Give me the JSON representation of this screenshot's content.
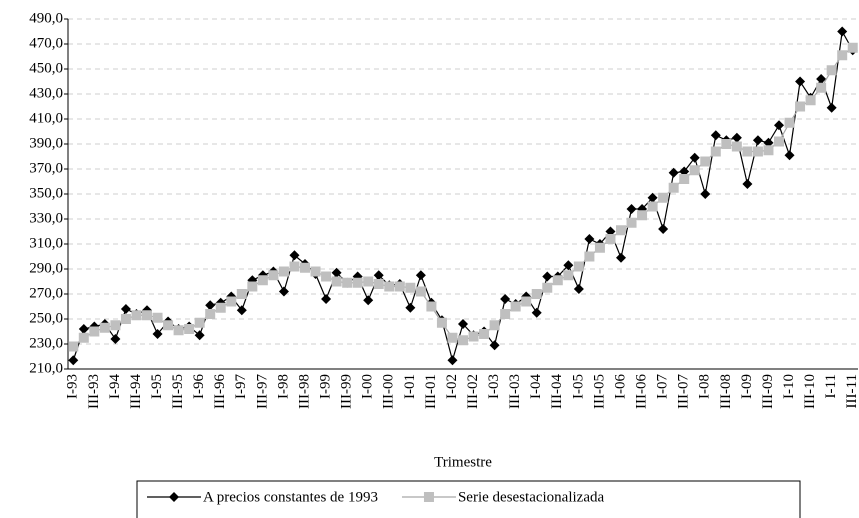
{
  "chart_data": {
    "type": "line",
    "x_label": "Trimestre",
    "categories": [
      "I-93",
      null,
      "III-93",
      null,
      "I-94",
      null,
      "III-94",
      null,
      "I-95",
      null,
      "III-95",
      null,
      "I-96",
      null,
      "III-96",
      null,
      "I-97",
      null,
      "III-97",
      null,
      "I-98",
      null,
      "III-98",
      null,
      "I-99",
      null,
      "III-99",
      null,
      "I-00",
      null,
      "III-00",
      null,
      "I-01",
      null,
      "III-01",
      null,
      "I-02",
      null,
      "III-02",
      null,
      "I-03",
      null,
      "III-03",
      null,
      "I-04",
      null,
      "III-04",
      null,
      "I-05",
      null,
      "III-05",
      null,
      "I-06",
      null,
      "III-06",
      null,
      "I-07",
      null,
      "III-07",
      null,
      "I-08",
      null,
      "III-08",
      null,
      "I-09",
      null,
      "III-09",
      null,
      "I-10",
      null,
      "III-10",
      null,
      "I-11",
      null,
      "III-11"
    ],
    "series": [
      {
        "name": "A precios constantes de 1993",
        "color": "#000000",
        "marker": "diamond",
        "values": [
          217,
          242,
          244,
          246,
          234,
          258,
          254,
          257,
          238,
          248,
          242,
          244,
          237,
          261,
          263,
          268,
          257,
          281,
          285,
          288,
          272,
          301,
          294,
          286,
          266,
          287,
          279,
          284,
          265,
          285,
          277,
          278,
          259,
          285,
          263,
          249,
          217,
          246,
          237,
          240,
          229,
          266,
          262,
          268,
          255,
          284,
          284,
          293,
          274,
          314,
          310,
          320,
          299,
          338,
          338,
          347,
          322,
          367,
          368,
          379,
          350,
          397,
          393,
          395,
          358,
          393,
          391,
          405,
          381,
          440,
          427,
          442,
          419,
          480,
          465
        ]
      },
      {
        "name": "Serie desestacionalizada",
        "color": "#bfbfbf",
        "marker": "square",
        "values": [
          228,
          235,
          240,
          243,
          245,
          250,
          253,
          253,
          251,
          245,
          241,
          242,
          247,
          254,
          259,
          264,
          270,
          276,
          281,
          285,
          288,
          292,
          291,
          288,
          284,
          280,
          279,
          279,
          280,
          278,
          276,
          276,
          275,
          272,
          260,
          247,
          235,
          233,
          236,
          238,
          245,
          254,
          260,
          264,
          270,
          275,
          281,
          285,
          292,
          300,
          307,
          314,
          321,
          327,
          333,
          340,
          347,
          355,
          362,
          369,
          376,
          384,
          390,
          388,
          384,
          384,
          385,
          392,
          407,
          420,
          425,
          435,
          449,
          461,
          467
        ]
      }
    ],
    "ylim": [
      210,
      490
    ],
    "yticks": [
      {
        "value": 210,
        "label": "210,0"
      },
      {
        "value": 230,
        "label": "230,0"
      },
      {
        "value": 250,
        "label": "250,0"
      },
      {
        "value": 270,
        "label": "270,0"
      },
      {
        "value": 290,
        "label": "290,0"
      },
      {
        "value": 310,
        "label": "310,0"
      },
      {
        "value": 330,
        "label": "330,0"
      },
      {
        "value": 350,
        "label": "350,0"
      },
      {
        "value": 370,
        "label": "370,0"
      },
      {
        "value": 390,
        "label": "390,0"
      },
      {
        "value": 410,
        "label": "410,0"
      },
      {
        "value": 430,
        "label": "430,0"
      },
      {
        "value": 450,
        "label": "450,0"
      },
      {
        "value": 470,
        "label": "470,0"
      },
      {
        "value": 490,
        "label": "490,0"
      }
    ],
    "grid": true,
    "legend": "bottom"
  }
}
